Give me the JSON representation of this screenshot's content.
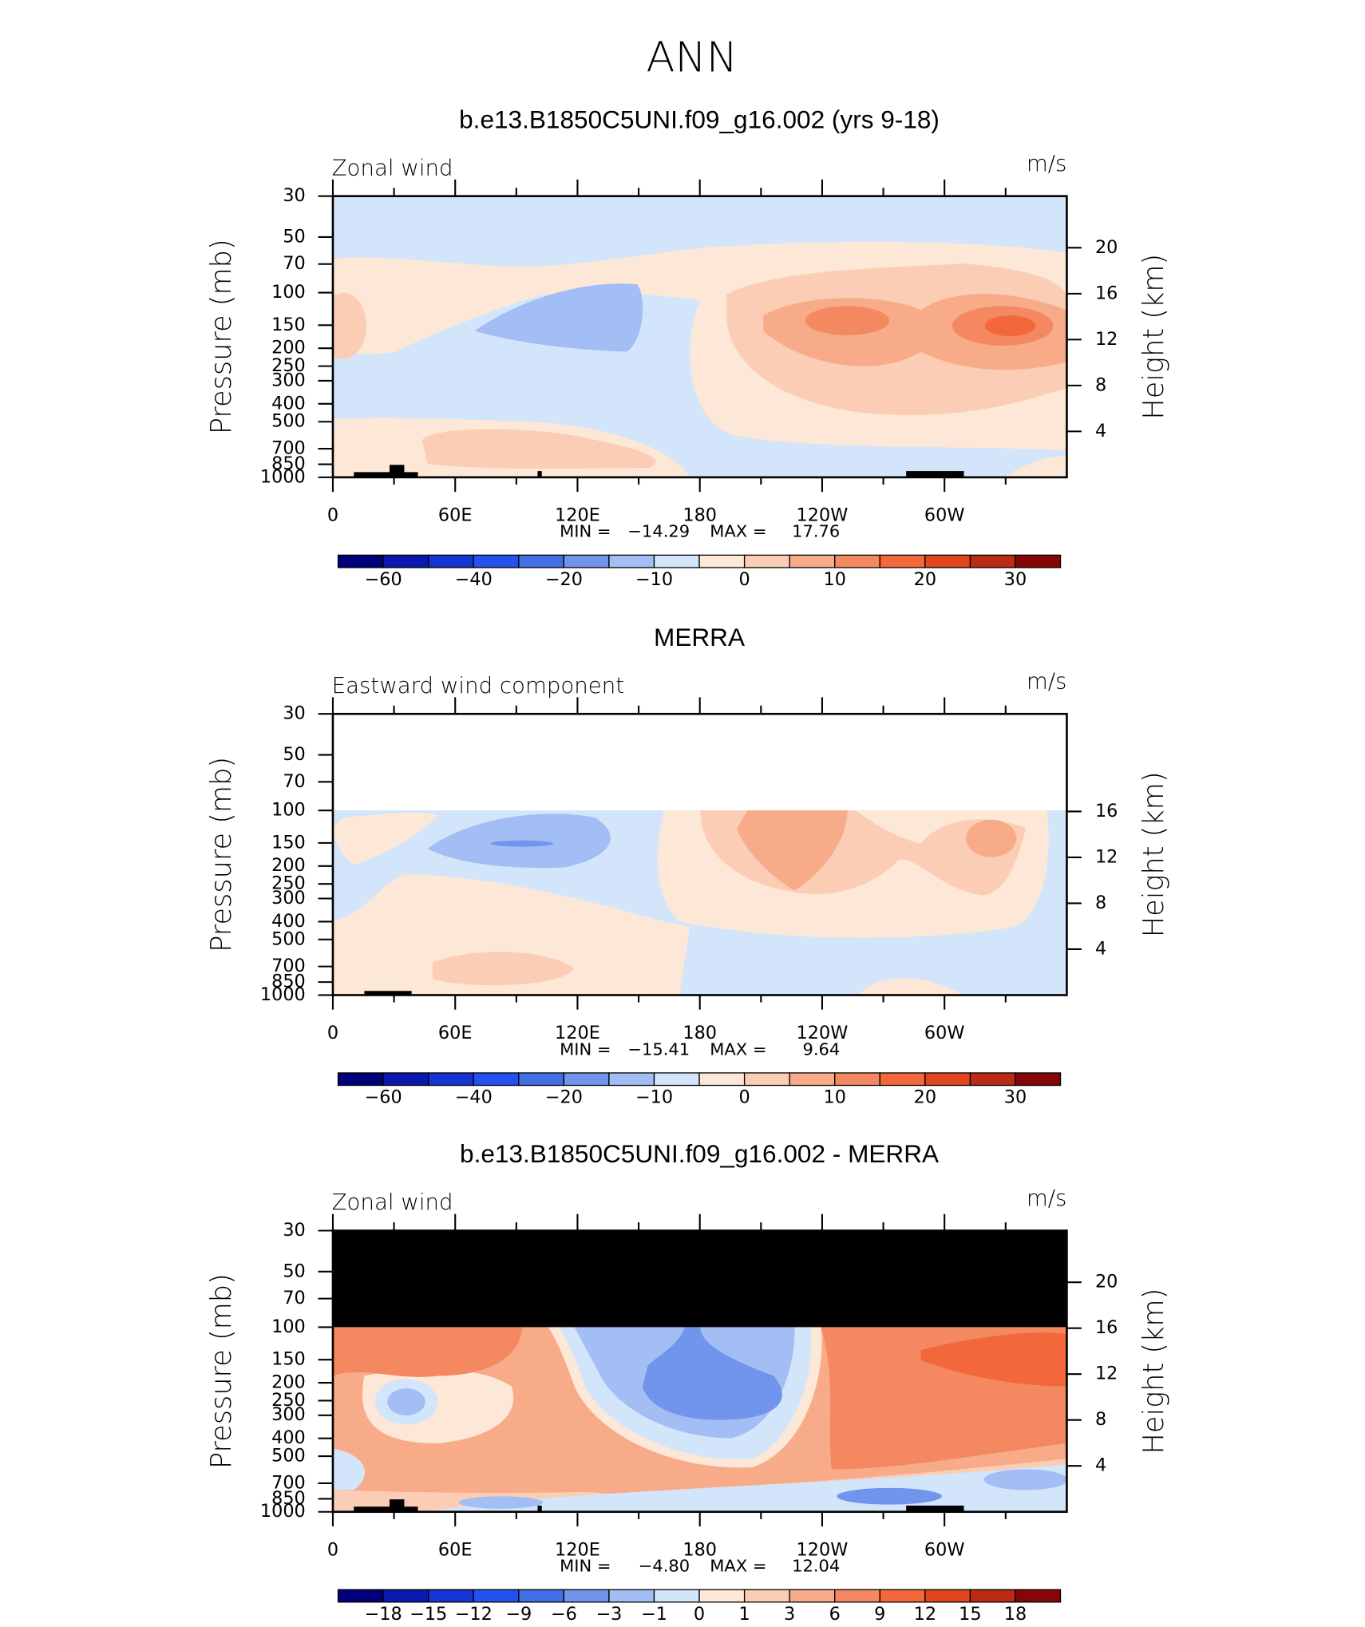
{
  "title": "ANN",
  "chart_data": [
    {
      "type": "contour",
      "title": "b.e13.B1850C5UNI.f09_g16.002 (yrs 9-18)",
      "left_subtitle": "Zonal wind",
      "right_subtitle": "m/s",
      "ylabel": "Pressure (mb)",
      "y2label": "Height (km)",
      "ylog": true,
      "xlim": [
        0,
        360
      ],
      "xticks": [
        0,
        {
          "value": 60,
          "label": "60E"
        },
        {
          "value": 120,
          "label": "120E"
        },
        180,
        {
          "value": 240,
          "label": "120W"
        },
        {
          "value": 300,
          "label": "60W"
        }
      ],
      "xminorticks": [
        30,
        90,
        150,
        210,
        270,
        330
      ],
      "ylim": [
        1000,
        30
      ],
      "yticks": [
        30,
        50,
        70,
        100,
        150,
        200,
        250,
        300,
        400,
        500,
        700,
        850,
        1000
      ],
      "y2lim": [
        0,
        24.5
      ],
      "y2ticks": [
        20,
        16,
        12,
        8,
        4
      ],
      "min_label": "MIN =",
      "min": {
        "value": -14.29,
        "label": "−14.29"
      },
      "max_label": "MAX =",
      "max": 17.76,
      "levels": [
        -60,
        -50,
        -40,
        -30,
        -20,
        -15,
        -10,
        -5,
        0,
        5,
        10,
        15,
        20,
        25,
        30
      ],
      "colorbar_ticks": [
        {
          "value": -60,
          "label": "−60"
        },
        {
          "value": -40,
          "label": "−40"
        },
        {
          "value": -20,
          "label": "−20"
        },
        {
          "value": -10,
          "label": "−10"
        },
        0,
        10,
        20,
        30
      ],
      "colors": [
        "#00007a",
        "#0a18b0",
        "#1434d4",
        "#2452ee",
        "#426ee6",
        "#7194ec",
        "#a3bdf5",
        "#d3e5fa",
        "#fde8d8",
        "#fbcdb4",
        "#f8ab88",
        "#f48860",
        "#f2683a",
        "#e2461c",
        "#bb2a12",
        "#850606"
      ]
    },
    {
      "type": "contour",
      "title": "MERRA",
      "left_subtitle": "Eastward wind component",
      "right_subtitle": "m/s",
      "ylabel": "Pressure (mb)",
      "y2label": "Height (km)",
      "ylog": true,
      "xlim": [
        0,
        360
      ],
      "xticks": [
        0,
        {
          "value": 60,
          "label": "60E"
        },
        {
          "value": 120,
          "label": "120E"
        },
        180,
        {
          "value": 240,
          "label": "120W"
        },
        {
          "value": 300,
          "label": "60W"
        }
      ],
      "xminorticks": [
        30,
        90,
        150,
        210,
        270,
        330
      ],
      "ylim": [
        1000,
        30
      ],
      "yticks": [
        30,
        50,
        70,
        100,
        150,
        200,
        250,
        300,
        400,
        500,
        700,
        850,
        1000
      ],
      "y2lim": [
        0,
        24.5
      ],
      "y2ticks": [
        16,
        12,
        8,
        4
      ],
      "min_label": "MIN =",
      "min": {
        "value": -15.41,
        "label": "−15.41"
      },
      "max_label": "MAX =",
      "max": 9.64,
      "levels": [
        -60,
        -50,
        -40,
        -30,
        -20,
        -15,
        -10,
        -5,
        0,
        5,
        10,
        15,
        20,
        25,
        30
      ],
      "colorbar_ticks": [
        {
          "value": -60,
          "label": "−60"
        },
        {
          "value": -40,
          "label": "−40"
        },
        {
          "value": -20,
          "label": "−20"
        },
        {
          "value": -10,
          "label": "−10"
        },
        0,
        10,
        20,
        30
      ],
      "colors": [
        "#00007a",
        "#0a18b0",
        "#1434d4",
        "#2452ee",
        "#426ee6",
        "#7194ec",
        "#a3bdf5",
        "#d3e5fa",
        "#fde8d8",
        "#fbcdb4",
        "#f8ab88",
        "#f48860",
        "#f2683a",
        "#e2461c",
        "#bb2a12",
        "#850606"
      ]
    },
    {
      "type": "contour",
      "title": "b.e13.B1850C5UNI.f09_g16.002 - MERRA",
      "left_subtitle": "Zonal wind",
      "right_subtitle": "m/s",
      "ylabel": "Pressure (mb)",
      "y2label": "Height (km)",
      "ylog": true,
      "xlim": [
        0,
        360
      ],
      "xticks": [
        0,
        {
          "value": 60,
          "label": "60E"
        },
        {
          "value": 120,
          "label": "120E"
        },
        180,
        {
          "value": 240,
          "label": "120W"
        },
        {
          "value": 300,
          "label": "60W"
        }
      ],
      "xminorticks": [
        30,
        90,
        150,
        210,
        270,
        330
      ],
      "ylim": [
        1000,
        30
      ],
      "yticks": [
        30,
        50,
        70,
        100,
        150,
        200,
        250,
        300,
        400,
        500,
        700,
        850,
        1000
      ],
      "y2lim": [
        0,
        24.5
      ],
      "y2ticks": [
        20,
        16,
        12,
        8,
        4
      ],
      "min_label": "MIN =",
      "min": {
        "value": -4.8,
        "label": "−4.80"
      },
      "max_label": "MAX =",
      "max": 12.04,
      "levels": [
        -18,
        -15,
        -12,
        -9,
        -6,
        -3,
        -1,
        0,
        1,
        3,
        6,
        9,
        12,
        15,
        18
      ],
      "colorbar_ticks": [
        {
          "value": -18,
          "label": "−18"
        },
        {
          "value": -15,
          "label": "−15"
        },
        {
          "value": -12,
          "label": "−12"
        },
        {
          "value": -9,
          "label": "−9"
        },
        {
          "value": -6,
          "label": "−6"
        },
        {
          "value": -3,
          "label": "−3"
        },
        {
          "value": -1,
          "label": "−1"
        },
        0,
        1,
        3,
        6,
        9,
        12,
        15,
        18
      ],
      "colors": [
        "#00007a",
        "#0a18b0",
        "#1434d4",
        "#2452ee",
        "#426ee6",
        "#7194ec",
        "#a3bdf5",
        "#d3e5fa",
        "#fde8d8",
        "#fbcdb4",
        "#f8ab88",
        "#f48860",
        "#f2683a",
        "#e2461c",
        "#bb2a12",
        "#850606"
      ]
    }
  ]
}
